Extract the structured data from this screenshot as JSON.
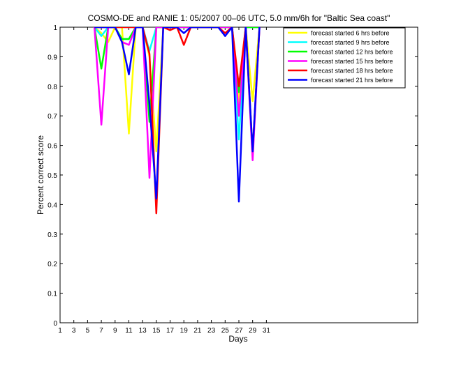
{
  "chart_data": {
    "type": "line",
    "title": "COSMO-DE and RANIE 1: 05/2007 00–06 UTC, 5.0 mm/6h for \"Baltic Sea coast\"",
    "xlabel": "Days",
    "ylabel": "Percent correct score",
    "xlim": [
      1,
      53
    ],
    "ylim": [
      0,
      1
    ],
    "xticks": [
      1,
      3,
      5,
      7,
      9,
      11,
      13,
      15,
      17,
      19,
      21,
      23,
      25,
      27,
      29,
      31
    ],
    "yticks": [
      0,
      0.1,
      0.2,
      0.3,
      0.4,
      0.5,
      0.6,
      0.7,
      0.8,
      0.9,
      1
    ],
    "ytick_labels": [
      "0",
      "0.1",
      "0.2",
      "0.3",
      "0.4",
      "0.5",
      "0.6",
      "0.7",
      "0.8",
      "0.9",
      "1"
    ],
    "grid": false,
    "legend_position": "top-right",
    "x": [
      6,
      7,
      8,
      9,
      10,
      11,
      12,
      13,
      14,
      15,
      16,
      17,
      18,
      19,
      20,
      21,
      22,
      23,
      24,
      25,
      26,
      27,
      28,
      29,
      30
    ],
    "series": [
      {
        "name": "forecast started 6 hrs before",
        "color": "#ffff00",
        "values": [
          1,
          0.98,
          0.95,
          1,
          1,
          0.64,
          1,
          1,
          0.9,
          0.58,
          1,
          1,
          1,
          1,
          1,
          1,
          1,
          1,
          1,
          1,
          1,
          0.74,
          1,
          0.75,
          1
        ]
      },
      {
        "name": "forecast started 9 hrs before",
        "color": "#00ffff",
        "values": [
          1,
          0.97,
          1,
          1,
          0.96,
          0.96,
          1,
          1,
          0.92,
          1,
          1,
          1,
          1,
          1,
          1,
          1,
          1,
          1,
          1,
          1,
          1,
          0.62,
          1,
          1,
          1
        ]
      },
      {
        "name": "forecast started 12 hrs before",
        "color": "#00ff00",
        "values": [
          1,
          0.86,
          1,
          1,
          0.96,
          0.96,
          1,
          1,
          0.68,
          1,
          1,
          1,
          1,
          1,
          1,
          1,
          1,
          1,
          1,
          1,
          1,
          0.78,
          1,
          1,
          1
        ]
      },
      {
        "name": "forecast started 15 hrs before",
        "color": "#ff00ff",
        "values": [
          1,
          0.67,
          1,
          1,
          0.95,
          0.94,
          1,
          1,
          0.49,
          1,
          1,
          1,
          1,
          1,
          1,
          1,
          1,
          1,
          1,
          1,
          1,
          0.7,
          1,
          0.55,
          1
        ]
      },
      {
        "name": "forecast started 18 hrs before",
        "color": "#ff0000",
        "values": [
          1,
          1,
          1,
          1,
          1,
          1,
          1,
          1,
          0.91,
          0.37,
          1,
          0.99,
          1,
          0.94,
          1,
          1,
          1,
          1,
          1,
          0.98,
          1,
          0.8,
          1,
          0.58,
          1
        ]
      },
      {
        "name": "forecast started 21 hrs before",
        "color": "#0000ff",
        "values": [
          1,
          1,
          1,
          1,
          0.95,
          0.84,
          1,
          1,
          0.74,
          0.42,
          1,
          1,
          1,
          0.98,
          1,
          1,
          1,
          1,
          1,
          0.97,
          1,
          0.41,
          1,
          0.58,
          1
        ]
      }
    ]
  }
}
